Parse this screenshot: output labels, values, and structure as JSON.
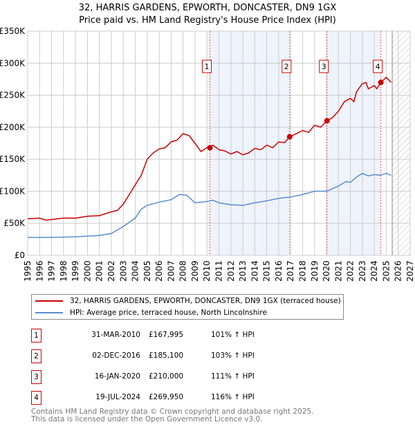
{
  "title": {
    "line1": "32, HARRIS GARDENS, EPWORTH, DONCASTER, DN9 1GX",
    "line2": "Price paid vs. HM Land Registry's House Price Index (HPI)"
  },
  "chart_data": {
    "type": "line",
    "xlim": [
      1995,
      2027
    ],
    "ylim": [
      0,
      350000
    ],
    "y_ticks": [
      {
        "v": 0,
        "label": "£0"
      },
      {
        "v": 50000,
        "label": "£50K"
      },
      {
        "v": 100000,
        "label": "£100K"
      },
      {
        "v": 150000,
        "label": "£150K"
      },
      {
        "v": 200000,
        "label": "£200K"
      },
      {
        "v": 250000,
        "label": "£250K"
      },
      {
        "v": 300000,
        "label": "£300K"
      },
      {
        "v": 350000,
        "label": "£350K"
      }
    ],
    "x_ticks": [
      "1995",
      "1996",
      "1997",
      "1998",
      "1999",
      "2000",
      "2001",
      "2002",
      "2003",
      "2004",
      "2005",
      "2006",
      "2007",
      "2008",
      "2009",
      "2010",
      "2011",
      "2012",
      "2013",
      "2014",
      "2015",
      "2016",
      "2017",
      "2018",
      "2019",
      "2020",
      "2021",
      "2022",
      "2023",
      "2024",
      "2025",
      "2026",
      "2027"
    ],
    "grid": true,
    "shaded_ranges": [
      [
        2010.25,
        2016.92
      ],
      [
        2020.04,
        2024.55
      ]
    ],
    "forecast_hatch_from": 2025.5,
    "series": [
      {
        "name": "32, HARRIS GARDENS, EPWORTH, DONCASTER, DN9 1GX (terraced house)",
        "color": "#cc0000",
        "x": [
          1995,
          1996,
          1996.5,
          1997,
          1998,
          1999,
          2000,
          2001,
          2002,
          2002.5,
          2003,
          2003.5,
          2004,
          2004.5,
          2005,
          2005.5,
          2006,
          2006.5,
          2007,
          2007.5,
          2008,
          2008.5,
          2009,
          2009.5,
          2010,
          2010.5,
          2011,
          2011.5,
          2012,
          2012.5,
          2013,
          2013.5,
          2014,
          2014.5,
          2015,
          2015.5,
          2016,
          2016.5,
          2016.92,
          2017.5,
          2018,
          2018.5,
          2019,
          2019.5,
          2020.04,
          2020.5,
          2021,
          2021.5,
          2022,
          2022.3,
          2022.5,
          2023,
          2023.3,
          2023.5,
          2024,
          2024.2,
          2024.55,
          2025,
          2025.4
        ],
        "y": [
          57000,
          58000,
          55000,
          56000,
          58000,
          58000,
          61000,
          62000,
          68000,
          70000,
          80000,
          95000,
          110000,
          125000,
          150000,
          160000,
          166000,
          168000,
          177000,
          180000,
          190000,
          187000,
          175000,
          162000,
          168000,
          172000,
          165000,
          163000,
          158000,
          162000,
          157000,
          160000,
          167000,
          165000,
          172000,
          168000,
          177000,
          176000,
          185000,
          190000,
          195000,
          192000,
          203000,
          200000,
          210000,
          215000,
          225000,
          240000,
          245000,
          240000,
          255000,
          268000,
          270000,
          260000,
          265000,
          260000,
          270000,
          278000,
          270000
        ]
      },
      {
        "name": "HPI: Average price, terraced house, North Lincolnshire",
        "color": "#5b8bd0",
        "x": [
          1995,
          1997,
          1999,
          2001,
          2002,
          2003,
          2004,
          2004.5,
          2005,
          2006,
          2007,
          2007.7,
          2008.3,
          2009,
          2010,
          2010.5,
          2011,
          2012,
          2013,
          2014,
          2015,
          2016,
          2017,
          2018,
          2019,
          2020,
          2021,
          2021.6,
          2022,
          2022.5,
          2023,
          2023.5,
          2024,
          2024.5,
          2025,
          2025.4
        ],
        "y": [
          28000,
          28000,
          29000,
          31000,
          34000,
          45000,
          58000,
          72000,
          78000,
          83000,
          87000,
          95000,
          94000,
          82000,
          84000,
          86000,
          82000,
          79000,
          78000,
          82000,
          85000,
          89000,
          91000,
          95000,
          100000,
          100000,
          108000,
          115000,
          114000,
          122000,
          128000,
          124000,
          126000,
          125000,
          128000,
          125000
        ]
      }
    ],
    "sales": [
      {
        "id": "1",
        "x": 2010.25,
        "price": 167995
      },
      {
        "id": "2",
        "x": 2016.92,
        "price": 185100
      },
      {
        "id": "3",
        "x": 2020.04,
        "price": 210000
      },
      {
        "id": "4",
        "x": 2024.55,
        "price": 269950
      }
    ]
  },
  "legend": {
    "property": "32, HARRIS GARDENS, EPWORTH, DONCASTER, DN9 1GX (terraced house)",
    "hpi": "HPI: Average price, terraced house, North Lincolnshire"
  },
  "table": [
    {
      "n": "1",
      "date": "31-MAR-2010",
      "price": "£167,995",
      "hpi": "101% ↑ HPI"
    },
    {
      "n": "2",
      "date": "02-DEC-2016",
      "price": "£185,100",
      "hpi": "103% ↑ HPI"
    },
    {
      "n": "3",
      "date": "16-JAN-2020",
      "price": "£210,000",
      "hpi": "111% ↑ HPI"
    },
    {
      "n": "4",
      "date": "19-JUL-2024",
      "price": "£269,950",
      "hpi": "116% ↑ HPI"
    }
  ],
  "footer": {
    "line1": "Contains HM Land Registry data © Crown copyright and database right 2025.",
    "line2": "This data is licensed under the Open Government Licence v3.0."
  }
}
